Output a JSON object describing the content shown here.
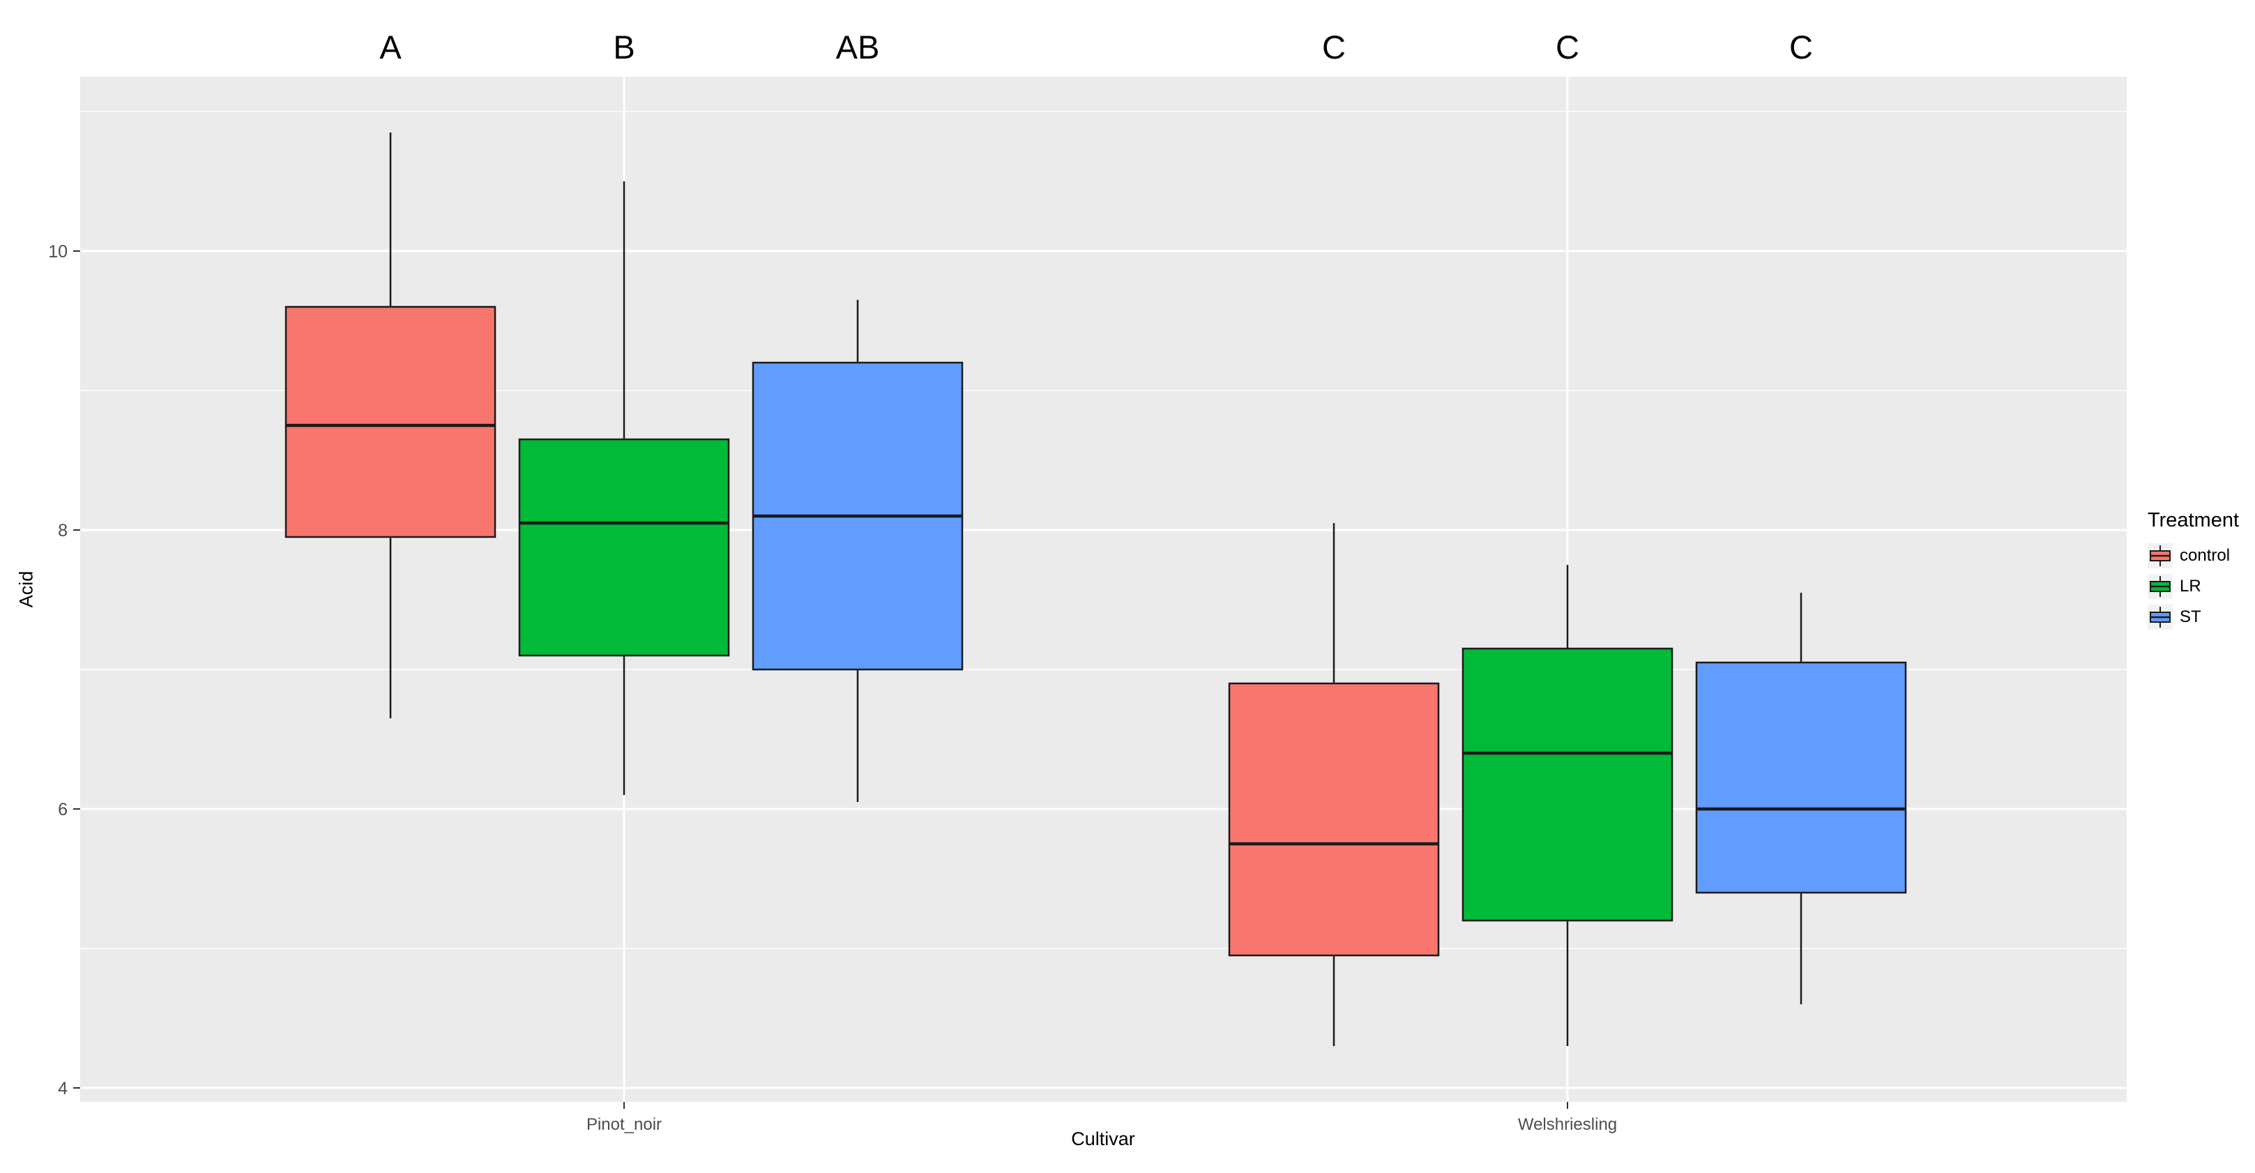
{
  "figure": {
    "background": "#ffffff",
    "panel_background": "#EBEBEB",
    "gridline_color": "#ffffff"
  },
  "chart_data": {
    "type": "boxplot",
    "title": "",
    "xlabel": "Cultivar",
    "ylabel": "Acid",
    "ylim": [
      3.9,
      11.25
    ],
    "yticks": [
      4,
      6,
      8,
      10
    ],
    "minor_yticks": [
      5,
      7,
      9,
      11
    ],
    "categories": [
      "Pinot_noir",
      "Welshriesling"
    ],
    "legend": {
      "title": "Treatment",
      "position": "right",
      "entries": [
        {
          "label": "control",
          "color": "#F8766D"
        },
        {
          "label": "LR",
          "color": "#00BA38"
        },
        {
          "label": "ST",
          "color": "#619CFF"
        }
      ]
    },
    "groups": [
      {
        "category": "Pinot_noir",
        "boxes": [
          {
            "treatment": "control",
            "letter": "A",
            "color": "#F8766D",
            "whisker_low": 6.65,
            "q1": 7.95,
            "median": 8.75,
            "q3": 9.6,
            "whisker_high": 10.85
          },
          {
            "treatment": "LR",
            "letter": "B",
            "color": "#00BA38",
            "whisker_low": 6.1,
            "q1": 7.1,
            "median": 8.05,
            "q3": 8.65,
            "whisker_high": 10.5
          },
          {
            "treatment": "ST",
            "letter": "AB",
            "color": "#619CFF",
            "whisker_low": 6.05,
            "q1": 7.0,
            "median": 8.1,
            "q3": 9.2,
            "whisker_high": 9.65
          }
        ]
      },
      {
        "category": "Welshriesling",
        "boxes": [
          {
            "treatment": "control",
            "letter": "C",
            "color": "#F8766D",
            "whisker_low": 4.3,
            "q1": 4.95,
            "median": 5.75,
            "q3": 6.9,
            "whisker_high": 8.05
          },
          {
            "treatment": "LR",
            "letter": "C",
            "color": "#00BA38",
            "whisker_low": 4.3,
            "q1": 5.2,
            "median": 6.4,
            "q3": 7.15,
            "whisker_high": 7.75
          },
          {
            "treatment": "ST",
            "letter": "C",
            "color": "#619CFF",
            "whisker_low": 4.6,
            "q1": 5.4,
            "median": 6.0,
            "q3": 7.05,
            "whisker_high": 7.55
          }
        ]
      }
    ]
  }
}
